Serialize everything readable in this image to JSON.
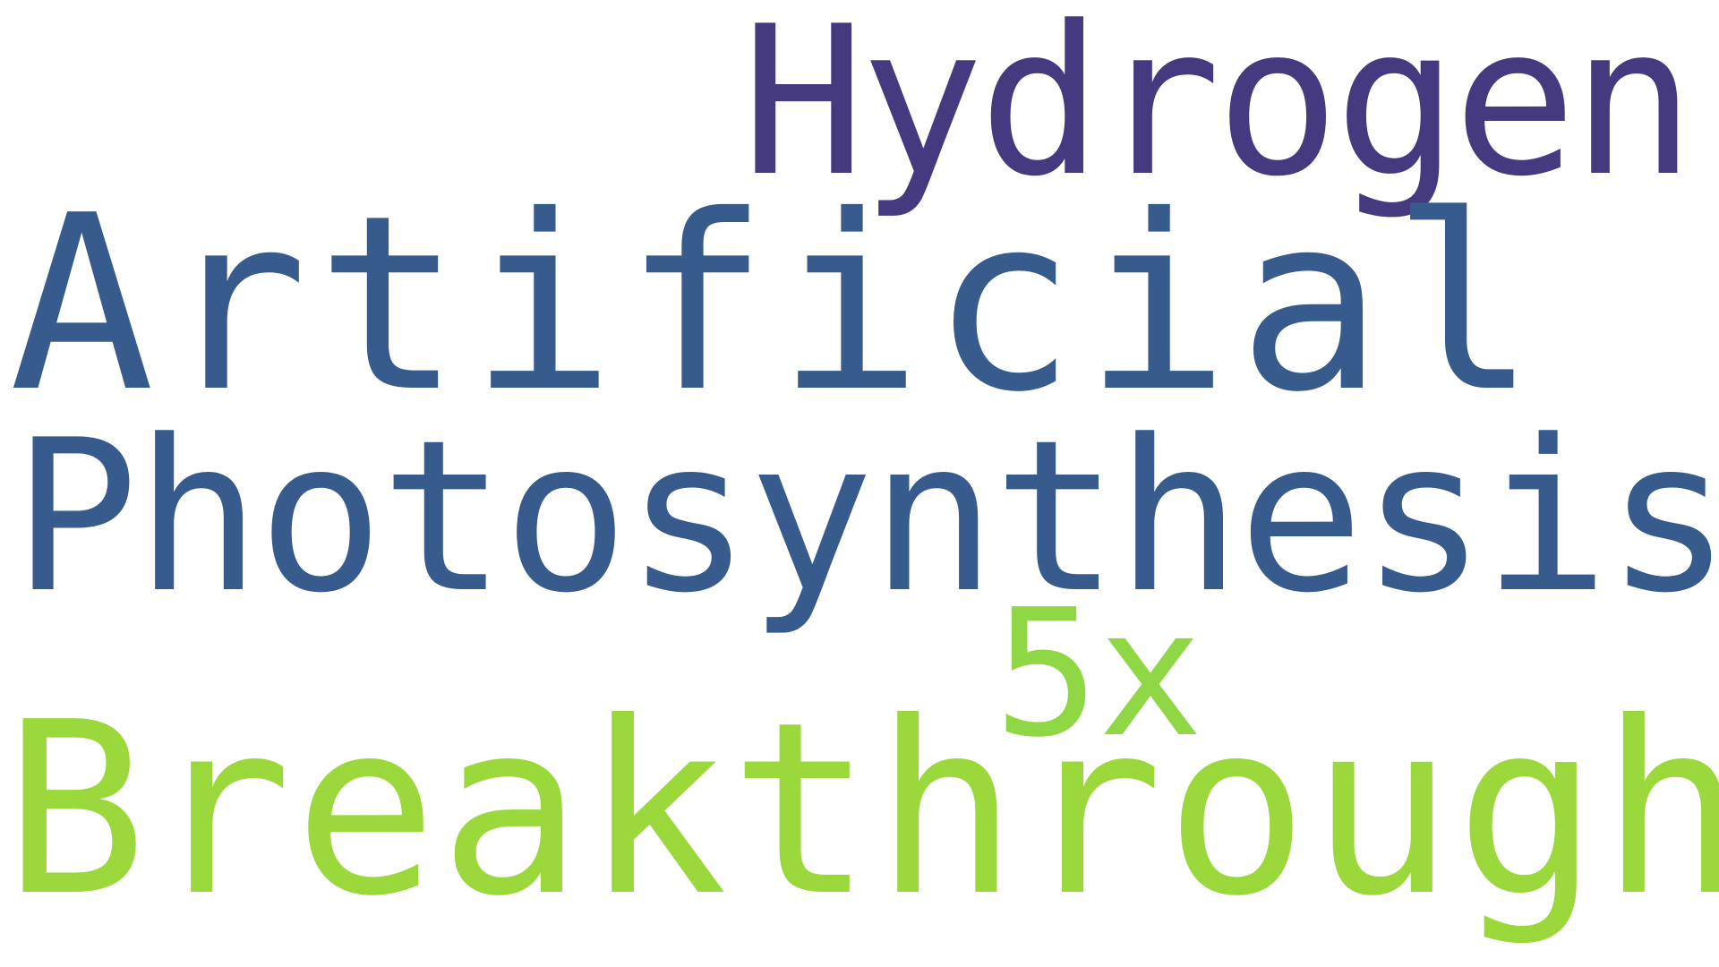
{
  "words": {
    "hydrogen": {
      "text": "Hydrogen",
      "color": "#45397f"
    },
    "artificial": {
      "text": "Artificial",
      "color": "#365b8c"
    },
    "photosynthesis": {
      "text": "Photosynthesis",
      "color": "#365b8c"
    },
    "five_x": {
      "text": "5x",
      "color": "#8fd744"
    },
    "breakthrough": {
      "text": "Breakthrough",
      "color": "#9bd83c"
    }
  }
}
